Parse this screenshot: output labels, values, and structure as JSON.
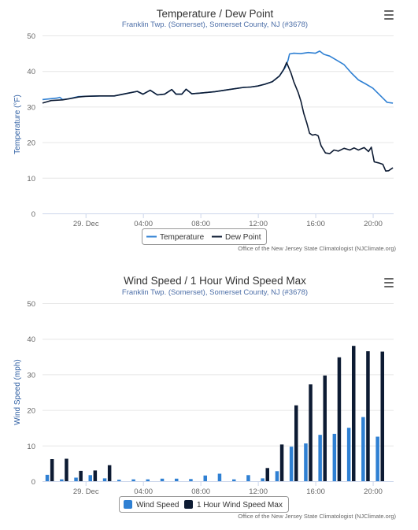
{
  "chart_data": [
    {
      "type": "line",
      "title": "Temperature / Dew Point",
      "subtitle": "Franklin Twp. (Somerset), Somerset County, NJ (#3678)",
      "xlabel": "",
      "ylabel": "Temperature (°F)",
      "ylim": [
        0,
        50
      ],
      "yticks": [
        "0",
        "10",
        "20",
        "30",
        "40",
        "50"
      ],
      "xticks": [
        {
          "label": "29. Dec",
          "hour": 0
        },
        {
          "label": "04:00",
          "hour": 4
        },
        {
          "label": "08:00",
          "hour": 8
        },
        {
          "label": "12:00",
          "hour": 12
        },
        {
          "label": "16:00",
          "hour": 16
        },
        {
          "label": "20:00",
          "hour": 20
        }
      ],
      "xlim_hours": [
        -3.0,
        21.45
      ],
      "grid": true,
      "legend_placement": "bottom-center",
      "credit": "Office of the New Jersey State Climatologist (NJClimate.org)",
      "series": [
        {
          "name": "Temperature",
          "color": "#2f80d3",
          "points": [
            [
              -3.0,
              32.0
            ],
            [
              -2.0,
              32.4
            ],
            [
              -1.8,
              32.6
            ],
            [
              -1.6,
              32.0
            ],
            [
              -1.2,
              32.2
            ],
            [
              -0.5,
              32.8
            ],
            [
              0.0,
              32.9
            ],
            [
              1.0,
              33.0
            ],
            [
              2.0,
              33.0
            ],
            [
              3.0,
              33.8
            ],
            [
              3.6,
              34.3
            ],
            [
              4.0,
              33.5
            ],
            [
              4.5,
              34.6
            ],
            [
              5.0,
              33.3
            ],
            [
              5.5,
              33.5
            ],
            [
              6.0,
              34.8
            ],
            [
              6.3,
              33.5
            ],
            [
              6.7,
              33.5
            ],
            [
              7.0,
              34.9
            ],
            [
              7.4,
              33.6
            ],
            [
              8.0,
              33.8
            ],
            [
              9.0,
              34.2
            ],
            [
              10.0,
              34.8
            ],
            [
              11.0,
              35.4
            ],
            [
              11.5,
              35.5
            ],
            [
              12.0,
              35.8
            ],
            [
              12.5,
              36.3
            ],
            [
              13.0,
              37.0
            ],
            [
              13.5,
              38.6
            ],
            [
              13.9,
              41.0
            ],
            [
              14.1,
              43.0
            ],
            [
              14.2,
              44.8
            ],
            [
              14.5,
              45.0
            ],
            [
              15.0,
              44.9
            ],
            [
              15.5,
              45.2
            ],
            [
              16.0,
              45.0
            ],
            [
              16.3,
              45.6
            ],
            [
              16.6,
              44.7
            ],
            [
              17.0,
              44.2
            ],
            [
              17.5,
              43.0
            ],
            [
              18.0,
              41.8
            ],
            [
              18.5,
              39.5
            ],
            [
              19.0,
              37.5
            ],
            [
              19.5,
              36.4
            ],
            [
              20.0,
              35.2
            ],
            [
              20.5,
              33.2
            ],
            [
              21.0,
              31.2
            ],
            [
              21.4,
              31.0
            ]
          ]
        },
        {
          "name": "Dew Point",
          "color": "#0d1b33",
          "points": [
            [
              -3.0,
              31.0
            ],
            [
              -2.4,
              31.7
            ],
            [
              -1.6,
              31.9
            ],
            [
              -1.0,
              32.3
            ],
            [
              -0.5,
              32.7
            ],
            [
              0.0,
              32.9
            ],
            [
              1.0,
              33.0
            ],
            [
              2.0,
              33.0
            ],
            [
              3.0,
              33.8
            ],
            [
              3.6,
              34.3
            ],
            [
              4.0,
              33.5
            ],
            [
              4.5,
              34.6
            ],
            [
              5.0,
              33.3
            ],
            [
              5.5,
              33.5
            ],
            [
              6.0,
              34.8
            ],
            [
              6.3,
              33.5
            ],
            [
              6.7,
              33.5
            ],
            [
              7.0,
              34.9
            ],
            [
              7.4,
              33.6
            ],
            [
              8.0,
              33.8
            ],
            [
              9.0,
              34.2
            ],
            [
              10.0,
              34.8
            ],
            [
              11.0,
              35.4
            ],
            [
              11.5,
              35.5
            ],
            [
              12.0,
              35.8
            ],
            [
              12.5,
              36.3
            ],
            [
              13.0,
              37.0
            ],
            [
              13.5,
              38.6
            ],
            [
              13.8,
              40.5
            ],
            [
              14.0,
              42.4
            ],
            [
              14.3,
              39.5
            ],
            [
              14.5,
              37.0
            ],
            [
              14.8,
              34.0
            ],
            [
              15.0,
              31.5
            ],
            [
              15.2,
              28.0
            ],
            [
              15.4,
              25.5
            ],
            [
              15.6,
              22.5
            ],
            [
              15.8,
              22.0
            ],
            [
              16.0,
              22.2
            ],
            [
              16.2,
              21.8
            ],
            [
              16.4,
              19.0
            ],
            [
              16.7,
              17.0
            ],
            [
              17.0,
              16.8
            ],
            [
              17.3,
              17.8
            ],
            [
              17.6,
              17.5
            ],
            [
              18.0,
              18.3
            ],
            [
              18.4,
              17.8
            ],
            [
              18.7,
              18.4
            ],
            [
              19.0,
              17.8
            ],
            [
              19.4,
              18.5
            ],
            [
              19.7,
              17.4
            ],
            [
              19.9,
              18.6
            ],
            [
              20.1,
              14.5
            ],
            [
              20.4,
              14.2
            ],
            [
              20.7,
              13.8
            ],
            [
              20.9,
              11.9
            ],
            [
              21.1,
              12.0
            ],
            [
              21.4,
              12.8
            ]
          ]
        }
      ]
    },
    {
      "type": "bar",
      "title": "Wind Speed / 1 Hour Wind Speed Max",
      "subtitle": "Franklin Twp. (Somerset), Somerset County, NJ (#3678)",
      "xlabel": "",
      "ylabel": "Wind Speed (mph)",
      "ylim": [
        0,
        50
      ],
      "yticks": [
        "0",
        "10",
        "20",
        "30",
        "40",
        "50"
      ],
      "xticks": [
        {
          "label": "29. Dec",
          "hour": 0
        },
        {
          "label": "04:00",
          "hour": 4
        },
        {
          "label": "08:00",
          "hour": 8
        },
        {
          "label": "12:00",
          "hour": 12
        },
        {
          "label": "16:00",
          "hour": 16
        },
        {
          "label": "20:00",
          "hour": 20
        }
      ],
      "xlim_hours": [
        -3.0,
        21.45
      ],
      "grid": true,
      "legend_placement": "bottom-center",
      "credit": "Office of the New Jersey State Climatologist (NJClimate.org)",
      "hours": [
        -2.5,
        -1.5,
        -0.5,
        0.5,
        1.5,
        2.5,
        3.5,
        4.5,
        5.5,
        6.5,
        7.5,
        8.5,
        9.5,
        10.5,
        11.5,
        12.5,
        13.5,
        14.5,
        15.5,
        16.5,
        17.5,
        18.5,
        19.5,
        20.5
      ],
      "series": [
        {
          "name": "Wind Speed",
          "color": "#2f80d3",
          "values": [
            1.8,
            0.5,
            1.0,
            1.7,
            0.8,
            0.4,
            0.5,
            0.5,
            0.7,
            0.7,
            0.6,
            1.6,
            2.1,
            0.5,
            1.7,
            0.8,
            2.8,
            9.7,
            10.6,
            13.0,
            13.3,
            15.0,
            18.0,
            12.5
          ]
        },
        {
          "name": "1 Hour Wind Speed Max",
          "color": "#0d1b33",
          "values": [
            6.2,
            6.3,
            2.9,
            3.0,
            4.5,
            0,
            0,
            0,
            0,
            0,
            0,
            0,
            0,
            0,
            0,
            3.7,
            10.3,
            21.3,
            27.2,
            29.7,
            34.8,
            38.0,
            36.5,
            36.4
          ]
        }
      ]
    }
  ]
}
